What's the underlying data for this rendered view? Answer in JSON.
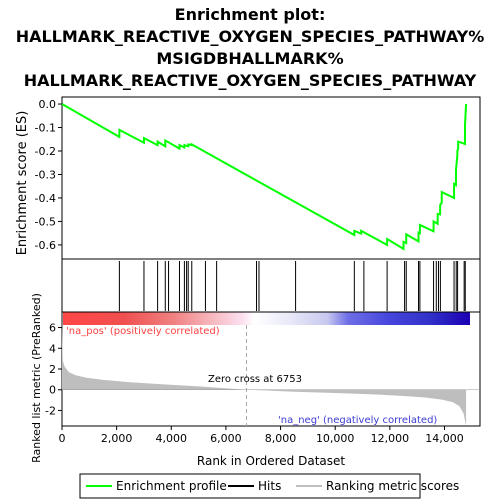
{
  "chart_data": {
    "type": "line",
    "title_lines": [
      "Enrichment plot:",
      "HALLMARK_REACTIVE_OXYGEN_SPECIES_PATHWAY%",
      "MSIGDBHALLMARK%",
      "HALLMARK_REACTIVE_OXYGEN_SPECIES_PATHWAY"
    ],
    "xlabel": "Rank in Ordered Dataset",
    "xlim": [
      0,
      15300
    ],
    "x_ticks": [
      0,
      2000,
      4000,
      6000,
      8000,
      10000,
      12000,
      14000
    ],
    "x_tick_labels": [
      "0",
      "2,000",
      "4,000",
      "6,000",
      "8,000",
      "10,000",
      "12,000",
      "14,000"
    ],
    "es_panel": {
      "ylabel": "Enrichment score (ES)",
      "ylim": [
        -0.66,
        0.03
      ],
      "y_ticks": [
        0.0,
        -0.1,
        -0.2,
        -0.3,
        -0.4,
        -0.5,
        -0.6
      ],
      "y_tick_labels": [
        "0.0",
        "-0.1",
        "-0.2",
        "-0.3",
        "-0.4",
        "-0.5",
        "-0.6"
      ],
      "series": [
        {
          "name": "Enrichment profile",
          "color": "#00ff00",
          "x": [
            0,
            2100,
            2101,
            3000,
            3001,
            3500,
            3501,
            3780,
            3781,
            4300,
            4301,
            4480,
            4481,
            4620,
            4621,
            4750,
            4751,
            10700,
            10701,
            10950,
            10951,
            11900,
            11901,
            12500,
            12501,
            12600,
            12601,
            13050,
            13051,
            13100,
            13101,
            13600,
            13601,
            13750,
            13751,
            13840,
            13841,
            13900,
            13901,
            14350,
            14351,
            14420,
            14421,
            14470,
            14471,
            14500,
            14501,
            14750,
            14751,
            14790
          ],
          "y": [
            0.0,
            -0.14,
            -0.11,
            -0.165,
            -0.145,
            -0.175,
            -0.16,
            -0.18,
            -0.155,
            -0.19,
            -0.175,
            -0.185,
            -0.175,
            -0.18,
            -0.172,
            -0.175,
            -0.172,
            -0.558,
            -0.54,
            -0.552,
            -0.54,
            -0.6,
            -0.575,
            -0.617,
            -0.587,
            -0.592,
            -0.555,
            -0.585,
            -0.548,
            -0.55,
            -0.515,
            -0.542,
            -0.5,
            -0.51,
            -0.468,
            -0.47,
            -0.43,
            -0.42,
            -0.375,
            -0.4,
            -0.34,
            -0.345,
            -0.28,
            -0.22,
            -0.2,
            -0.19,
            -0.16,
            -0.17,
            -0.09,
            0.0
          ]
        }
      ]
    },
    "hits": [
      2100,
      3000,
      3500,
      3780,
      3900,
      4300,
      4480,
      4560,
      4620,
      4750,
      5250,
      5660,
      7120,
      7210,
      8550,
      10700,
      11050,
      11900,
      12540,
      12600,
      13050,
      13100,
      13600,
      13700,
      13780,
      13850,
      14350,
      14430,
      14480,
      14720,
      14760
    ],
    "rank_metric_panel": {
      "ylabel": "Ranked list metric (PreRanked)",
      "ylim": [
        -3.5,
        7.5
      ],
      "y_ticks": [
        6,
        4,
        2,
        0,
        -2
      ],
      "y_tick_labels": [
        "6",
        "4",
        "2",
        "0",
        "-2"
      ],
      "x": [
        0,
        30,
        100,
        250,
        500,
        900,
        1500,
        2500,
        3500,
        5000,
        6753,
        8500,
        10000,
        11500,
        12500,
        13300,
        13900,
        14300,
        14550,
        14700,
        14790
      ],
      "y": [
        6.7,
        2.8,
        2.2,
        1.7,
        1.4,
        1.15,
        0.95,
        0.72,
        0.55,
        0.32,
        0.0,
        -0.2,
        -0.32,
        -0.46,
        -0.6,
        -0.75,
        -0.95,
        -1.2,
        -1.6,
        -2.3,
        -3.5
      ],
      "fill_color": "#bebebe",
      "zero_cross_label": "Zero cross at 6753",
      "zero_cross": 6753,
      "pos_label": "'na_pos' (positively correlated)",
      "neg_label": "'na_neg' (negatively correlated)",
      "pos_color": "#ff4040",
      "neg_color": "#3c3cd2"
    },
    "legend": {
      "position": "bottom",
      "items": [
        {
          "name": "Enrichment profile",
          "color": "#00ff00"
        },
        {
          "name": "Hits",
          "color": "#000000"
        },
        {
          "name": "Ranking metric scores",
          "color": "#bebebe"
        }
      ]
    }
  }
}
